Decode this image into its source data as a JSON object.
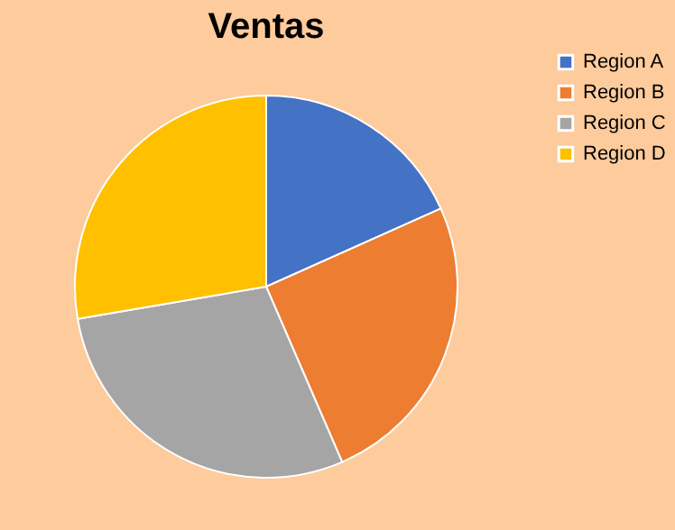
{
  "chart_data": {
    "type": "pie",
    "title": "Ventas",
    "categories": [
      "Region A",
      "Region B",
      "Region C",
      "Region D"
    ],
    "values": [
      18.3,
      25.2,
      28.8,
      27.7
    ],
    "colors": [
      "#4472c4",
      "#ed7d31",
      "#a5a5a5",
      "#ffc000"
    ],
    "legend": "right"
  }
}
